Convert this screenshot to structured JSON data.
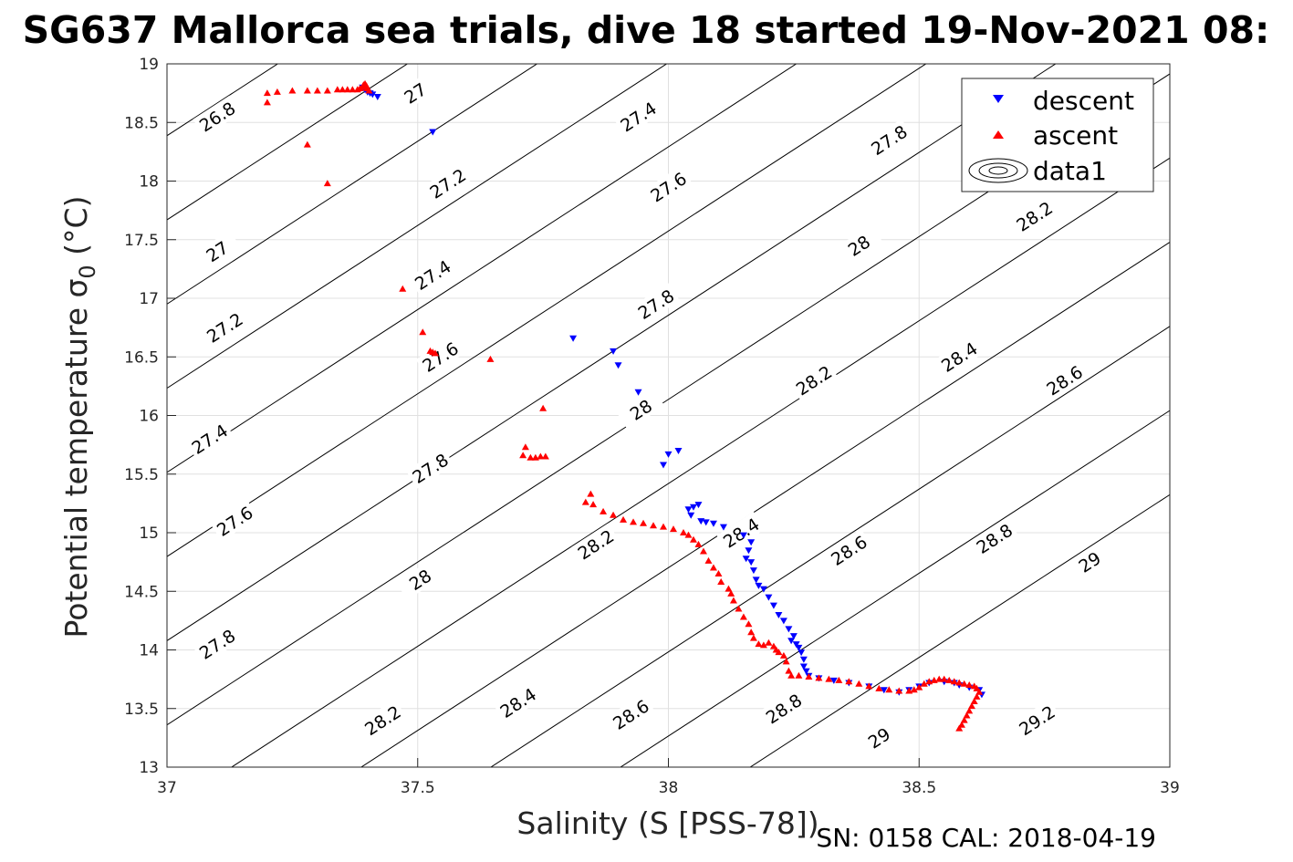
{
  "chart_data": {
    "type": "scatter",
    "title": "SG637 Mallorca sea trials, dive 18 started 19-Nov-2021 08:",
    "xlabel": "Salinity (S [PSS-78])",
    "ylabel_main": "Potential temperature σ",
    "ylabel_sub": "0",
    "ylabel_unit": " (°C)",
    "xlim": [
      37,
      39
    ],
    "ylim": [
      13,
      19
    ],
    "xticks": [
      "37",
      "37.5",
      "38",
      "38.5",
      "39"
    ],
    "yticks": [
      "13",
      "13.5",
      "14",
      "14.5",
      "15",
      "15.5",
      "16",
      "16.5",
      "17",
      "17.5",
      "18",
      "18.5",
      "19"
    ],
    "grid": true,
    "legend_position": "top-right",
    "legend": [
      "descent",
      "ascent",
      "data1"
    ],
    "footer": "SN: 0158  CAL: 2018-04-19",
    "contours": {
      "levels": [
        "26.8",
        "27",
        "27.2",
        "27.4",
        "27.6",
        "27.8",
        "28",
        "28.2",
        "28.4",
        "28.6",
        "28.8",
        "29",
        "29.2"
      ],
      "color": "#000000"
    },
    "contour_labels": [
      {
        "text": "26.8",
        "s": 37.1,
        "t": 18.55
      },
      {
        "text": "27",
        "s": 37.495,
        "t": 18.75
      },
      {
        "text": "27",
        "s": 37.1,
        "t": 17.4
      },
      {
        "text": "27.2",
        "s": 37.56,
        "t": 17.98
      },
      {
        "text": "27.2",
        "s": 37.115,
        "t": 16.75
      },
      {
        "text": "27.4",
        "s": 37.94,
        "t": 18.55
      },
      {
        "text": "27.4",
        "s": 37.53,
        "t": 17.2
      },
      {
        "text": "27.4",
        "s": 37.085,
        "t": 15.8
      },
      {
        "text": "27.6",
        "s": 38.0,
        "t": 17.95
      },
      {
        "text": "27.6",
        "s": 37.545,
        "t": 16.5
      },
      {
        "text": "27.6",
        "s": 37.135,
        "t": 15.1
      },
      {
        "text": "27.8",
        "s": 38.44,
        "t": 18.35
      },
      {
        "text": "27.8",
        "s": 37.975,
        "t": 16.95
      },
      {
        "text": "27.8",
        "s": 37.525,
        "t": 15.55
      },
      {
        "text": "27.8",
        "s": 37.1,
        "t": 14.05
      },
      {
        "text": "28",
        "s": 38.38,
        "t": 17.45
      },
      {
        "text": "28",
        "s": 37.945,
        "t": 16.05
      },
      {
        "text": "28",
        "s": 37.505,
        "t": 14.6
      },
      {
        "text": "28.2",
        "s": 38.73,
        "t": 17.7
      },
      {
        "text": "28.2",
        "s": 38.29,
        "t": 16.3
      },
      {
        "text": "28.2",
        "s": 37.855,
        "t": 14.9
      },
      {
        "text": "28.2",
        "s": 37.43,
        "t": 13.4
      },
      {
        "text": "28.4",
        "s": 38.58,
        "t": 16.5
      },
      {
        "text": "28.4",
        "s": 38.145,
        "t": 15.0
      },
      {
        "text": "28.4",
        "s": 37.7,
        "t": 13.55
      },
      {
        "text": "28.6",
        "s": 38.79,
        "t": 16.3
      },
      {
        "text": "28.6",
        "s": 38.36,
        "t": 14.85
      },
      {
        "text": "28.6",
        "s": 37.925,
        "t": 13.45
      },
      {
        "text": "28.8",
        "s": 38.65,
        "t": 14.95
      },
      {
        "text": "28.8",
        "s": 38.23,
        "t": 13.5
      },
      {
        "text": "29",
        "s": 38.84,
        "t": 14.75
      },
      {
        "text": "29",
        "s": 38.42,
        "t": 13.25
      },
      {
        "text": "29.2",
        "s": 38.735,
        "t": 13.4
      }
    ],
    "series": [
      {
        "name": "descent",
        "marker": "triangle-down",
        "color": "#0000ff",
        "points": [
          [
            37.39,
            18.8
          ],
          [
            37.395,
            18.78
          ],
          [
            37.4,
            18.76
          ],
          [
            37.405,
            18.75
          ],
          [
            37.41,
            18.74
          ],
          [
            37.42,
            18.72
          ],
          [
            37.53,
            18.42
          ],
          [
            37.81,
            16.66
          ],
          [
            37.89,
            16.55
          ],
          [
            37.9,
            16.43
          ],
          [
            37.94,
            16.2
          ],
          [
            37.99,
            15.58
          ],
          [
            38.0,
            15.67
          ],
          [
            38.02,
            15.7
          ],
          [
            38.04,
            15.2
          ],
          [
            38.045,
            15.15
          ],
          [
            38.05,
            15.22
          ],
          [
            38.06,
            15.24
          ],
          [
            38.065,
            15.1
          ],
          [
            38.075,
            15.09
          ],
          [
            38.09,
            15.08
          ],
          [
            38.11,
            15.05
          ],
          [
            38.15,
            14.98
          ],
          [
            38.165,
            14.92
          ],
          [
            38.16,
            14.85
          ],
          [
            38.155,
            14.78
          ],
          [
            38.165,
            14.75
          ],
          [
            38.17,
            14.68
          ],
          [
            38.175,
            14.6
          ],
          [
            38.18,
            14.55
          ],
          [
            38.19,
            14.52
          ],
          [
            38.2,
            14.45
          ],
          [
            38.21,
            14.38
          ],
          [
            38.22,
            14.3
          ],
          [
            38.23,
            14.25
          ],
          [
            38.24,
            14.18
          ],
          [
            38.245,
            14.08
          ],
          [
            38.25,
            14.12
          ],
          [
            38.255,
            14.05
          ],
          [
            38.26,
            14.02
          ],
          [
            38.265,
            13.98
          ],
          [
            38.27,
            13.92
          ],
          [
            38.27,
            13.86
          ],
          [
            38.275,
            13.82
          ],
          [
            38.28,
            13.78
          ],
          [
            38.3,
            13.76
          ],
          [
            38.33,
            13.74
          ],
          [
            38.36,
            13.72
          ],
          [
            38.4,
            13.69
          ],
          [
            38.43,
            13.66
          ],
          [
            38.46,
            13.64
          ],
          [
            38.48,
            13.66
          ],
          [
            38.5,
            13.69
          ],
          [
            38.52,
            13.72
          ],
          [
            38.55,
            13.73
          ],
          [
            38.57,
            13.72
          ],
          [
            38.58,
            13.7
          ],
          [
            38.6,
            13.68
          ],
          [
            38.62,
            13.66
          ],
          [
            38.625,
            13.62
          ]
        ]
      },
      {
        "name": "ascent",
        "marker": "triangle-up",
        "color": "#ff0000",
        "points": [
          [
            37.2,
            18.75
          ],
          [
            37.2,
            18.67
          ],
          [
            37.22,
            18.76
          ],
          [
            37.25,
            18.77
          ],
          [
            37.28,
            18.77
          ],
          [
            37.3,
            18.77
          ],
          [
            37.32,
            18.77
          ],
          [
            37.34,
            18.78
          ],
          [
            37.35,
            18.78
          ],
          [
            37.36,
            18.78
          ],
          [
            37.37,
            18.78
          ],
          [
            37.38,
            18.78
          ],
          [
            37.385,
            18.79
          ],
          [
            37.39,
            18.8
          ],
          [
            37.392,
            18.82
          ],
          [
            37.395,
            18.83
          ],
          [
            37.398,
            18.81
          ],
          [
            37.4,
            18.79
          ],
          [
            37.403,
            18.77
          ],
          [
            37.28,
            18.31
          ],
          [
            37.32,
            17.98
          ],
          [
            37.47,
            17.08
          ],
          [
            37.51,
            16.71
          ],
          [
            37.525,
            16.55
          ],
          [
            37.53,
            16.54
          ],
          [
            37.535,
            16.53
          ],
          [
            37.645,
            16.48
          ],
          [
            37.75,
            16.06
          ],
          [
            37.715,
            15.73
          ],
          [
            37.71,
            15.66
          ],
          [
            37.725,
            15.64
          ],
          [
            37.735,
            15.64
          ],
          [
            37.745,
            15.65
          ],
          [
            37.755,
            15.65
          ],
          [
            37.835,
            15.26
          ],
          [
            37.845,
            15.33
          ],
          [
            37.85,
            15.24
          ],
          [
            37.87,
            15.18
          ],
          [
            37.89,
            15.15
          ],
          [
            37.91,
            15.11
          ],
          [
            37.93,
            15.09
          ],
          [
            37.95,
            15.08
          ],
          [
            37.97,
            15.06
          ],
          [
            37.99,
            15.05
          ],
          [
            38.01,
            15.03
          ],
          [
            38.03,
            15.0
          ],
          [
            38.04,
            14.98
          ],
          [
            38.05,
            14.94
          ],
          [
            38.06,
            14.9
          ],
          [
            38.07,
            14.84
          ],
          [
            38.08,
            14.76
          ],
          [
            38.09,
            14.7
          ],
          [
            38.1,
            14.65
          ],
          [
            38.105,
            14.58
          ],
          [
            38.12,
            14.52
          ],
          [
            38.125,
            14.48
          ],
          [
            38.13,
            14.42
          ],
          [
            38.14,
            14.35
          ],
          [
            38.15,
            14.28
          ],
          [
            38.16,
            14.22
          ],
          [
            38.165,
            14.15
          ],
          [
            38.17,
            14.1
          ],
          [
            38.18,
            14.05
          ],
          [
            38.19,
            14.04
          ],
          [
            38.2,
            14.06
          ],
          [
            38.21,
            14.03
          ],
          [
            38.215,
            14.0
          ],
          [
            38.22,
            13.98
          ],
          [
            38.23,
            13.95
          ],
          [
            38.235,
            13.9
          ],
          [
            38.24,
            13.82
          ],
          [
            38.245,
            13.78
          ],
          [
            38.26,
            13.78
          ],
          [
            38.28,
            13.77
          ],
          [
            38.3,
            13.76
          ],
          [
            38.32,
            13.75
          ],
          [
            38.34,
            13.74
          ],
          [
            38.36,
            13.73
          ],
          [
            38.38,
            13.71
          ],
          [
            38.4,
            13.69
          ],
          [
            38.42,
            13.67
          ],
          [
            38.44,
            13.66
          ],
          [
            38.46,
            13.65
          ],
          [
            38.48,
            13.65
          ],
          [
            38.49,
            13.66
          ],
          [
            38.5,
            13.68
          ],
          [
            38.51,
            13.71
          ],
          [
            38.52,
            13.73
          ],
          [
            38.53,
            13.74
          ],
          [
            38.54,
            13.75
          ],
          [
            38.55,
            13.75
          ],
          [
            38.56,
            13.74
          ],
          [
            38.57,
            13.73
          ],
          [
            38.58,
            13.72
          ],
          [
            38.59,
            13.71
          ],
          [
            38.6,
            13.7
          ],
          [
            38.61,
            13.69
          ],
          [
            38.615,
            13.67
          ],
          [
            38.62,
            13.64
          ],
          [
            38.615,
            13.6
          ],
          [
            38.61,
            13.56
          ],
          [
            38.605,
            13.52
          ],
          [
            38.6,
            13.48
          ],
          [
            38.595,
            13.44
          ],
          [
            38.59,
            13.4
          ],
          [
            38.585,
            13.36
          ],
          [
            38.58,
            13.33
          ]
        ]
      }
    ]
  }
}
